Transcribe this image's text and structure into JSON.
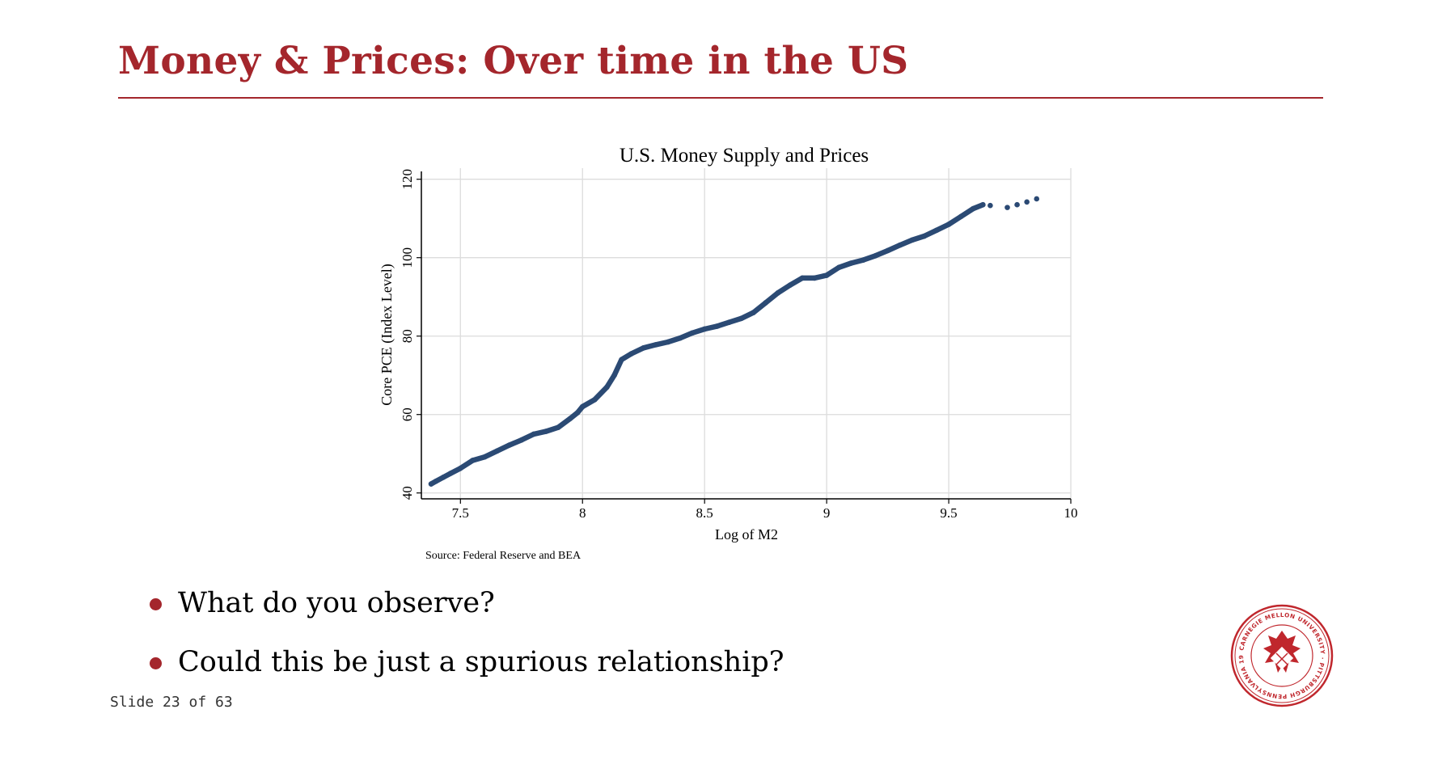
{
  "slide": {
    "title": "Money & Prices: Over time in the US",
    "bullets": [
      "What do you observe?",
      "Could this be just a spurious relationship?"
    ],
    "slide_number": "Slide 23 of 63"
  },
  "logo": {
    "icon": "carnegie-mellon-seal",
    "ring_text": "CARNEGIE MELLON UNIVERSITY · PITTSBURGH PENNSYLVANIA 1900"
  },
  "colors": {
    "accent": "#a4262c",
    "series": "#2b4a74",
    "grid": "#dcdcdc"
  },
  "chart_data": {
    "type": "scatter",
    "title": "U.S. Money Supply and Prices",
    "xlabel": "Log of M2",
    "ylabel": "Core PCE (Index Level)",
    "note": "Source: Federal Reserve and BEA",
    "xlim": [
      7.34,
      10.0
    ],
    "ylim": [
      38.5,
      122
    ],
    "xticks": [
      7.5,
      8,
      8.5,
      9,
      9.5,
      10
    ],
    "yticks": [
      40,
      60,
      80,
      100,
      120
    ],
    "grid": true,
    "series": [
      {
        "marker": "dot",
        "points": [
          [
            7.38,
            42.3
          ],
          [
            7.4,
            43.0
          ],
          [
            7.43,
            44.0
          ],
          [
            7.46,
            45.0
          ],
          [
            7.5,
            46.3
          ],
          [
            7.55,
            48.3
          ],
          [
            7.6,
            49.2
          ],
          [
            7.65,
            50.7
          ],
          [
            7.7,
            52.2
          ],
          [
            7.75,
            53.5
          ],
          [
            7.8,
            55.0
          ],
          [
            7.85,
            55.7
          ],
          [
            7.9,
            56.7
          ],
          [
            7.95,
            59.0
          ],
          [
            7.98,
            60.5
          ],
          [
            8.0,
            62.0
          ],
          [
            8.05,
            63.8
          ],
          [
            8.1,
            67.0
          ],
          [
            8.13,
            70.0
          ],
          [
            8.16,
            74.0
          ],
          [
            8.2,
            75.5
          ],
          [
            8.25,
            77.0
          ],
          [
            8.3,
            77.8
          ],
          [
            8.35,
            78.5
          ],
          [
            8.4,
            79.5
          ],
          [
            8.45,
            80.8
          ],
          [
            8.5,
            81.8
          ],
          [
            8.55,
            82.5
          ],
          [
            8.6,
            83.5
          ],
          [
            8.65,
            84.5
          ],
          [
            8.7,
            86.0
          ],
          [
            8.75,
            88.5
          ],
          [
            8.8,
            91.0
          ],
          [
            8.85,
            93.0
          ],
          [
            8.9,
            94.8
          ],
          [
            8.95,
            94.8
          ],
          [
            9.0,
            95.5
          ],
          [
            9.05,
            97.5
          ],
          [
            9.1,
            98.6
          ],
          [
            9.15,
            99.4
          ],
          [
            9.2,
            100.5
          ],
          [
            9.25,
            101.8
          ],
          [
            9.3,
            103.2
          ],
          [
            9.35,
            104.5
          ],
          [
            9.4,
            105.5
          ],
          [
            9.45,
            107.0
          ],
          [
            9.5,
            108.5
          ],
          [
            9.55,
            110.5
          ],
          [
            9.6,
            112.5
          ],
          [
            9.64,
            113.5
          ],
          [
            9.67,
            113.3
          ],
          [
            9.74,
            112.8
          ],
          [
            9.78,
            113.5
          ],
          [
            9.82,
            114.2
          ],
          [
            9.86,
            115.0
          ]
        ]
      }
    ]
  }
}
